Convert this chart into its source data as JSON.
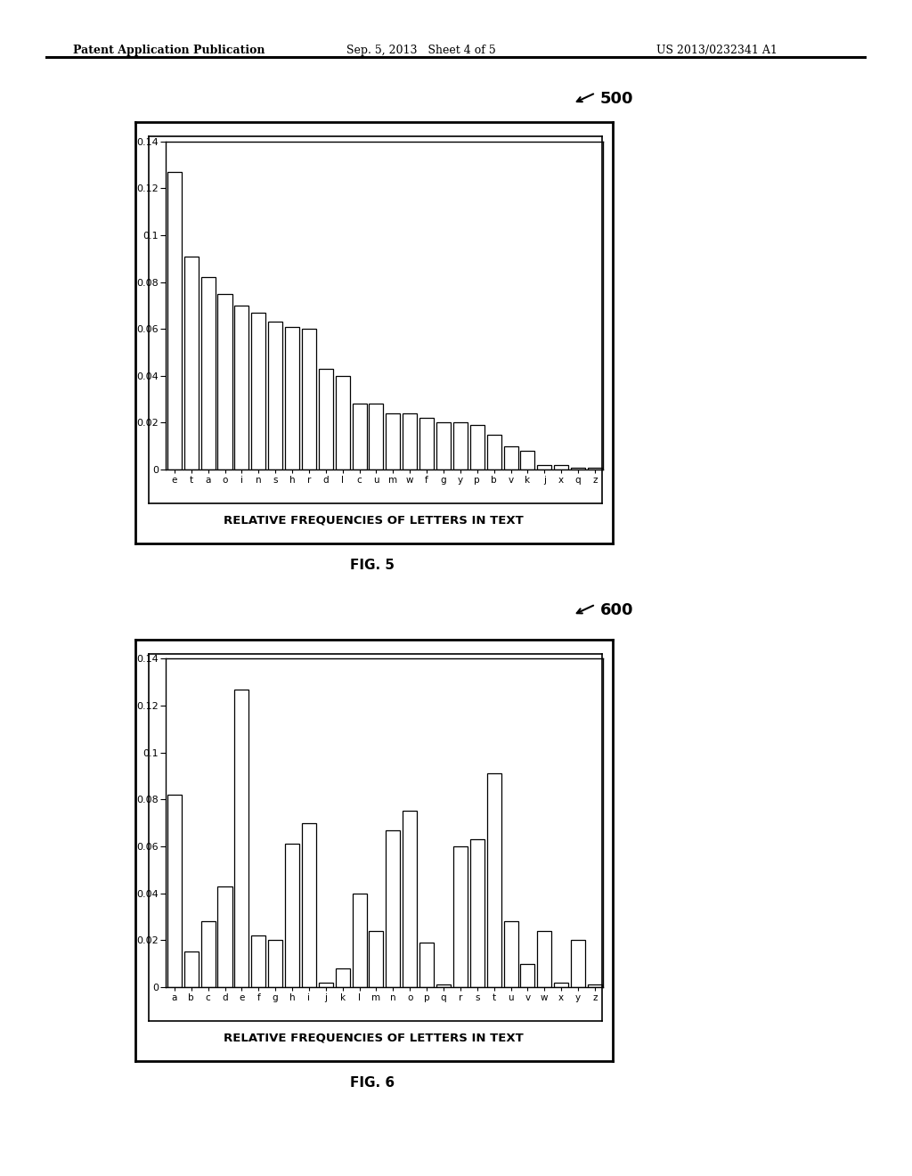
{
  "fig5_letters": [
    "e",
    "t",
    "a",
    "o",
    "i",
    "n",
    "s",
    "h",
    "r",
    "d",
    "l",
    "c",
    "u",
    "m",
    "w",
    "f",
    "g",
    "y",
    "p",
    "b",
    "v",
    "k",
    "j",
    "x",
    "q",
    "z"
  ],
  "fig5_values": [
    0.127,
    0.091,
    0.082,
    0.075,
    0.07,
    0.067,
    0.063,
    0.061,
    0.06,
    0.043,
    0.04,
    0.028,
    0.028,
    0.024,
    0.024,
    0.022,
    0.02,
    0.02,
    0.019,
    0.015,
    0.01,
    0.008,
    0.002,
    0.002,
    0.001,
    0.001
  ],
  "fig6_letters": [
    "a",
    "b",
    "c",
    "d",
    "e",
    "f",
    "g",
    "h",
    "i",
    "j",
    "k",
    "l",
    "m",
    "n",
    "o",
    "p",
    "q",
    "r",
    "s",
    "t",
    "u",
    "v",
    "w",
    "x",
    "y",
    "z"
  ],
  "fig6_values": [
    0.082,
    0.015,
    0.028,
    0.043,
    0.127,
    0.022,
    0.02,
    0.061,
    0.07,
    0.002,
    0.008,
    0.04,
    0.024,
    0.067,
    0.075,
    0.019,
    0.001,
    0.06,
    0.063,
    0.091,
    0.028,
    0.01,
    0.024,
    0.002,
    0.02,
    0.001
  ],
  "xlabel_caption": "RELATIVE FREQUENCIES OF LETTERS IN TEXT",
  "ylim": [
    0,
    0.14
  ],
  "yticks": [
    0,
    0.02,
    0.04,
    0.06,
    0.08,
    0.1,
    0.12,
    0.14
  ],
  "ytick_labels": [
    "0",
    "0.02",
    "0.04",
    "0.06",
    "0.08",
    "0.1",
    "0.12",
    "0.14"
  ],
  "fig5_label": "FIG. 5",
  "fig6_label": "FIG. 6",
  "fig5_number": "500",
  "fig6_number": "600",
  "bar_color": "white",
  "bar_edgecolor": "black",
  "background_color": "white",
  "header_left": "Patent Application Publication",
  "header_mid": "Sep. 5, 2013   Sheet 4 of 5",
  "header_right": "US 2013/0232341 A1"
}
